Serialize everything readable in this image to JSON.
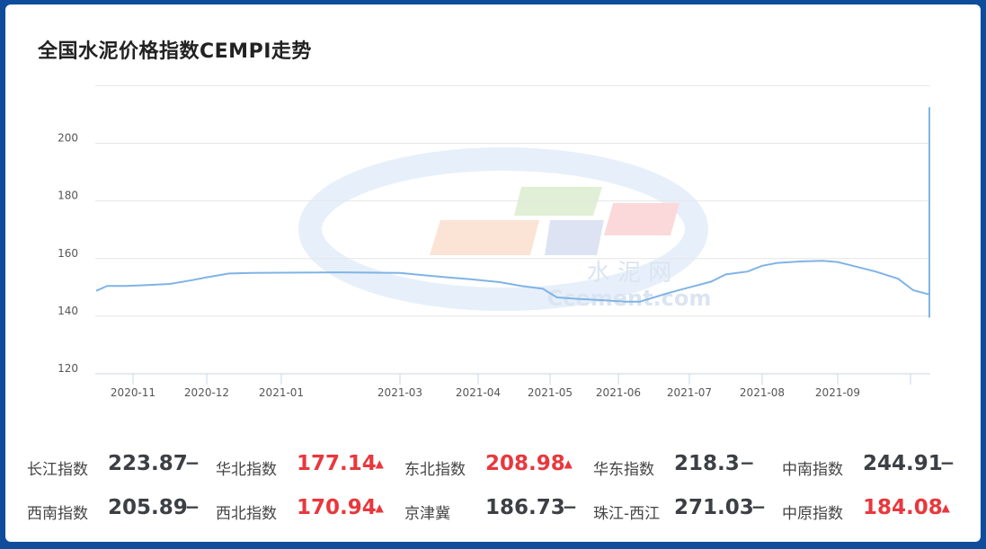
{
  "title": "全国水泥价格指数CEMPI走势",
  "watermark": {
    "line1": "水 泥 网",
    "line2": "Ccement.com"
  },
  "colors": {
    "line": "#7fb4e6",
    "grid": "#e6e6e6",
    "up": "#e8383d",
    "flat": "#3c3f44",
    "bg": "#0f4c9c"
  },
  "chart_data": {
    "type": "line",
    "title": "全国水泥价格指数CEMPI走势",
    "xlabel": "",
    "ylabel": "",
    "ylim": [
      120,
      220
    ],
    "yticks": [
      120,
      140,
      160,
      180,
      200
    ],
    "xticks": [
      "2020-11",
      "2020-12",
      "2021-01",
      "2021-03",
      "2021-04",
      "2021-05",
      "2021-06",
      "2021-07",
      "2021-08",
      "2021-09"
    ],
    "grid": true,
    "series": [
      {
        "values": [
          [
            -0.5,
            148.8
          ],
          [
            -0.35,
            150.5
          ],
          [
            -0.1,
            150.5
          ],
          [
            0.2,
            150.8
          ],
          [
            0.5,
            151.2
          ],
          [
            0.8,
            152.5
          ],
          [
            1.0,
            153.5
          ],
          [
            1.3,
            154.8
          ],
          [
            1.6,
            155.0
          ],
          [
            2.0,
            155.1
          ],
          [
            2.5,
            155.2
          ],
          [
            3.0,
            155.0
          ],
          [
            3.3,
            154.2
          ],
          [
            3.6,
            153.5
          ],
          [
            3.9,
            152.8
          ],
          [
            4.3,
            151.8
          ],
          [
            4.6,
            150.5
          ],
          [
            4.9,
            149.5
          ],
          [
            5.1,
            146.5
          ],
          [
            5.4,
            146.0
          ],
          [
            5.8,
            145.5
          ],
          [
            6.1,
            145.0
          ],
          [
            6.3,
            145.0
          ],
          [
            6.5,
            146.5
          ],
          [
            6.7,
            148.0
          ],
          [
            7.0,
            150.0
          ],
          [
            7.3,
            152.0
          ],
          [
            7.5,
            154.5
          ],
          [
            7.8,
            155.5
          ],
          [
            8.0,
            157.5
          ],
          [
            8.2,
            158.5
          ],
          [
            8.5,
            159.0
          ],
          [
            8.8,
            159.2
          ],
          [
            9.0,
            158.8
          ],
          [
            9.2,
            157.5
          ],
          [
            9.5,
            155.5
          ],
          [
            9.8,
            153.0
          ],
          [
            10.0,
            149.0
          ],
          [
            10.3,
            147.5
          ],
          [
            10.6,
            146.5
          ],
          [
            11.0,
            143.5
          ],
          [
            11.3,
            141.0
          ],
          [
            11.6,
            139.8
          ],
          [
            12.0,
            139.5
          ],
          [
            12.4,
            139.5
          ],
          [
            12.6,
            141.5
          ],
          [
            13.0,
            143.0
          ],
          [
            13.3,
            145.5
          ],
          [
            13.7,
            148.0
          ],
          [
            14.0,
            149.0
          ],
          [
            14.3,
            152.0
          ],
          [
            14.5,
            155.0
          ],
          [
            14.7,
            160.0
          ],
          [
            14.85,
            165.0
          ],
          [
            15.0,
            178.0
          ],
          [
            15.2,
            188.0
          ],
          [
            15.45,
            194.0
          ],
          [
            15.65,
            204.0
          ],
          [
            15.8,
            208.0
          ],
          [
            15.95,
            212.0
          ],
          [
            16.1,
            212.5
          ]
        ]
      }
    ]
  },
  "indices": [
    [
      {
        "name": "长江指数",
        "value": "223.87",
        "trend": "flat"
      },
      {
        "name": "华北指数",
        "value": "177.14",
        "trend": "up"
      },
      {
        "name": "东北指数",
        "value": "208.98",
        "trend": "up"
      },
      {
        "name": "华东指数",
        "value": "218.3",
        "trend": "flat"
      },
      {
        "name": "中南指数",
        "value": "244.91",
        "trend": "flat"
      }
    ],
    [
      {
        "name": "西南指数",
        "value": "205.89",
        "trend": "flat"
      },
      {
        "name": "西北指数",
        "value": "170.94",
        "trend": "up"
      },
      {
        "name": "京津冀",
        "value": "186.73",
        "trend": "flat"
      },
      {
        "name": "珠江-西江",
        "value": "271.03",
        "trend": "flat"
      },
      {
        "name": "中原指数",
        "value": "184.08",
        "trend": "up"
      }
    ]
  ]
}
